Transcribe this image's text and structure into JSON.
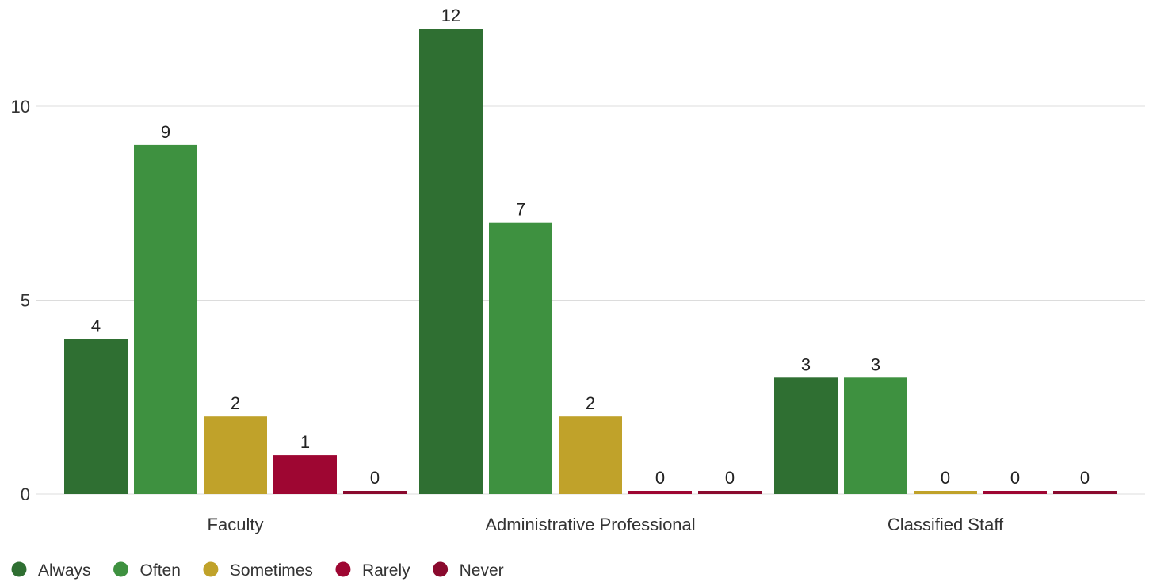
{
  "chart_data": {
    "type": "bar",
    "title": "",
    "xlabel": "",
    "ylabel": "",
    "categories": [
      "Faculty",
      "Administrative Professional",
      "Classified Staff"
    ],
    "series": [
      {
        "name": "Always",
        "color": "#2f6f32",
        "values": [
          4,
          12,
          3
        ]
      },
      {
        "name": "Often",
        "color": "#3e9140",
        "values": [
          9,
          7,
          3
        ]
      },
      {
        "name": "Sometimes",
        "color": "#c0a22a",
        "values": [
          2,
          2,
          0
        ]
      },
      {
        "name": "Rarely",
        "color": "#9e0632",
        "values": [
          1,
          0,
          0
        ]
      },
      {
        "name": "Never",
        "color": "#8a0a2e",
        "values": [
          0,
          0,
          0
        ]
      }
    ],
    "yticks": [
      0,
      5,
      10
    ],
    "ylim": [
      0,
      12
    ],
    "grid": true,
    "legend": "bottom-left",
    "data_labels": true
  }
}
